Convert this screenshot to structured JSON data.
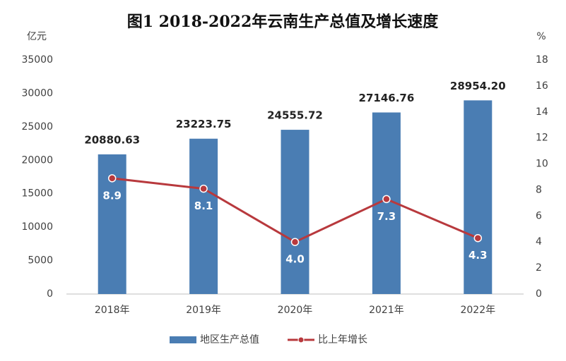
{
  "chart_data": {
    "type": "combo",
    "title": "图1  2018-2022年云南生产总值及增长速度",
    "y_label": "亿元",
    "y2_label": "%",
    "categories": [
      "2018年",
      "2019年",
      "2020年",
      "2021年",
      "2022年"
    ],
    "series": [
      {
        "name": "地区生产总值",
        "type": "bar",
        "color": "#4a7db3",
        "values": [
          20880.63,
          23223.75,
          24555.72,
          27146.76,
          28954.2
        ],
        "value_labels": [
          "20880.63",
          "23223.75",
          "24555.72",
          "27146.76",
          "28954.20"
        ]
      },
      {
        "name": "比上年增长",
        "type": "line",
        "axis": "y2",
        "color": "#b8393d",
        "values": [
          8.9,
          8.1,
          4.0,
          7.3,
          4.3
        ],
        "value_labels": [
          "8.9",
          "8.1",
          "4.0",
          "7.3",
          "4.3"
        ]
      }
    ],
    "ylim": [
      0,
      35000
    ],
    "yticks": [
      0,
      5000,
      10000,
      15000,
      20000,
      25000,
      30000,
      35000
    ],
    "y2lim": [
      0,
      18
    ],
    "y2ticks": [
      0,
      2,
      4,
      6,
      8,
      10,
      12,
      14,
      16,
      18
    ],
    "grid": false,
    "legend": "bottom"
  }
}
